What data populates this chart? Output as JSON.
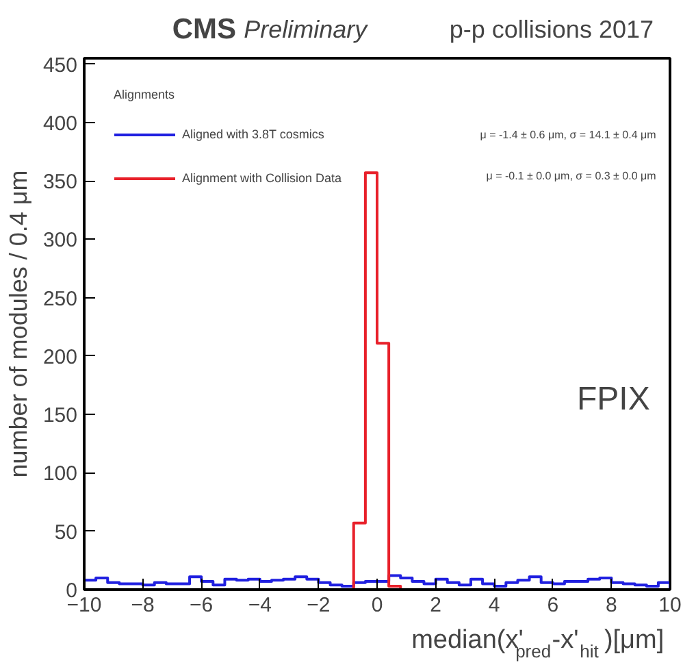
{
  "chart_data": {
    "type": "histogram",
    "title": "CMS Preliminary",
    "subtitle": "p-p collisions 2017",
    "xlabel": "median(x'$_{pred}$-x'$_{hit}$)[μm]",
    "ylabel": "number of modules / 0.4 μm",
    "legend_title": "Alignments",
    "legend": "top left",
    "grid": false,
    "bins": [
      -10,
      -9.6,
      -9.2,
      -8.8,
      -8.4,
      -8,
      -7.6,
      -7.2,
      -6.8,
      -6.4,
      -6,
      -5.6,
      -5.2,
      -4.8,
      -4.4,
      -4,
      -3.6,
      -3.2,
      -2.8,
      -2.4,
      -2,
      -1.6,
      -1.2,
      -0.8,
      -0.4,
      0,
      0.4,
      0.8,
      1.2,
      1.6,
      2,
      2.4,
      2.8,
      3.2,
      3.6,
      4,
      4.4,
      4.8,
      5.2,
      5.6,
      6,
      6.4,
      6.8,
      7.2,
      7.6,
      8,
      8.4,
      8.8,
      9.2,
      9.6,
      10
    ],
    "series": [
      {
        "name": "Aligned with 3.8T cosmics",
        "color": "#2020e0",
        "values": [
          8,
          10,
          6,
          5,
          5,
          4,
          6,
          5,
          5,
          11,
          7,
          4,
          9,
          8,
          9,
          7,
          8,
          9,
          11,
          9,
          6,
          4,
          3,
          6,
          7,
          7,
          12,
          10,
          7,
          5,
          9,
          6,
          4,
          9,
          5,
          3,
          6,
          8,
          11,
          6,
          5,
          7,
          7,
          9,
          10,
          6,
          5,
          4,
          3,
          6
        ]
      },
      {
        "name": "Alignment with Collision Data",
        "color": "#e8202a",
        "values": [
          0,
          0,
          0,
          0,
          0,
          0,
          0,
          0,
          0,
          0,
          0,
          0,
          0,
          0,
          0,
          0,
          0,
          0,
          0,
          0,
          0,
          0,
          0,
          57,
          357,
          211,
          3,
          0,
          0,
          0,
          0,
          0,
          0,
          0,
          0,
          0,
          0,
          0,
          0,
          0,
          0,
          0,
          0,
          0,
          0,
          0,
          0,
          0,
          0,
          0
        ]
      }
    ],
    "annotations": [
      "μ = -1.4 ± 0.6 μm,  σ = 14.1 ± 0.4 μm",
      "μ = -0.1 ± 0.0 μm,  σ = 0.3 ± 0.0 μm",
      "FPIX"
    ],
    "xlim": [
      -10,
      10
    ],
    "ylim": [
      0,
      455
    ],
    "xticks": [
      {
        "value": -10,
        "label": "−10"
      },
      {
        "value": -8,
        "label": "−8"
      },
      {
        "value": -6,
        "label": "−6"
      },
      {
        "value": -4,
        "label": "−4"
      },
      {
        "value": -2,
        "label": "−2"
      },
      0,
      2,
      4,
      6,
      8,
      10
    ],
    "yticks": [
      0,
      50,
      100,
      150,
      200,
      250,
      300,
      350,
      400,
      450
    ]
  }
}
